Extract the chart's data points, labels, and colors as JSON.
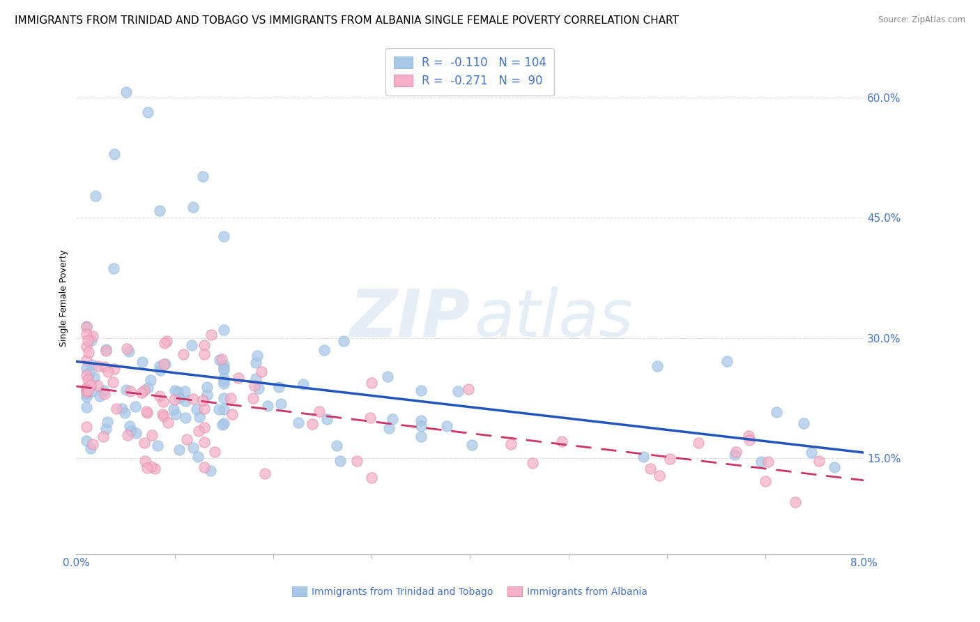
{
  "title": "IMMIGRANTS FROM TRINIDAD AND TOBAGO VS IMMIGRANTS FROM ALBANIA SINGLE FEMALE POVERTY CORRELATION CHART",
  "source": "Source: ZipAtlas.com",
  "ylabel": "Single Female Poverty",
  "legend_label1": "Immigrants from Trinidad and Tobago",
  "legend_label2": "Immigrants from Albania",
  "tt_color": "#a8c8e8",
  "alb_color": "#f4b0c8",
  "tt_line_color": "#2255bb",
  "alb_line_color": "#cc3366",
  "watermark_zip": "ZIP",
  "watermark_atlas": "atlas",
  "background_color": "#ffffff",
  "grid_color": "#cccccc",
  "axis_color": "#4472C4",
  "title_fontsize": 11,
  "axis_label_fontsize": 9,
  "tick_fontsize": 11,
  "legend_fontsize": 12,
  "tt_R": -0.11,
  "tt_N": 104,
  "alb_R": -0.271,
  "alb_N": 90,
  "xlim": [
    0.0,
    0.08
  ],
  "ylim": [
    0.03,
    0.67
  ],
  "yticks": [
    0.15,
    0.3,
    0.45,
    0.6
  ],
  "ytick_labels": [
    "15.0%",
    "30.0%",
    "45.0%",
    "60.0%"
  ]
}
